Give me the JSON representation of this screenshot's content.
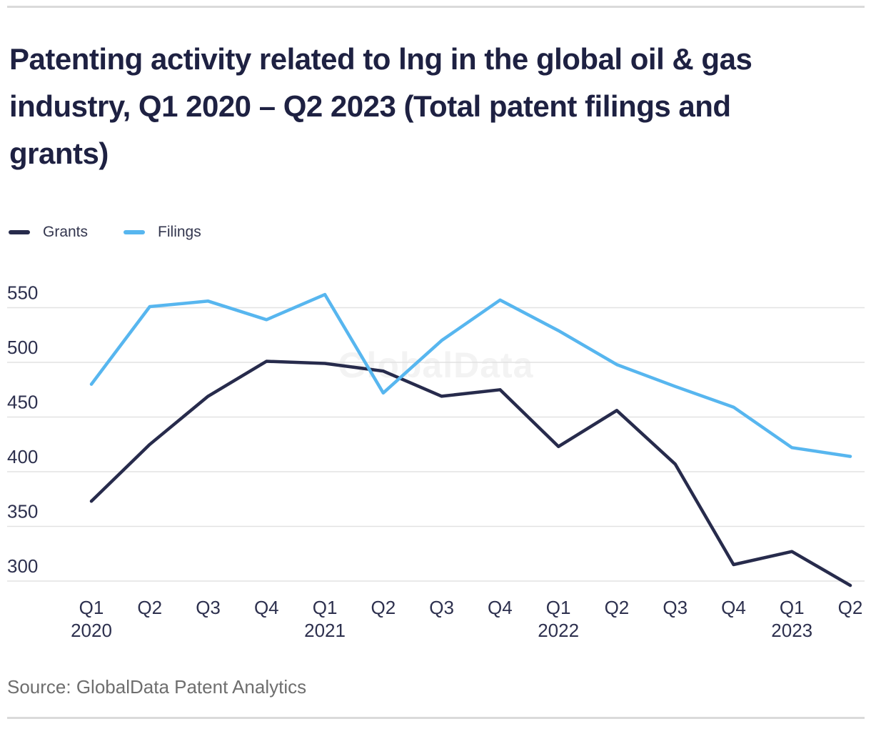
{
  "header": {
    "title": "Patenting activity related to lng in the global oil & gas industry, Q1 2020 – Q2 2023 (Total patent filings and grants)"
  },
  "legend": {
    "items": [
      {
        "label": "Grants",
        "color": "#272b4c"
      },
      {
        "label": "Filings",
        "color": "#57b6ef"
      }
    ]
  },
  "chart_data": {
    "type": "line",
    "title": "Patenting activity related to lng in the global oil & gas industry, Q1 2020 – Q2 2023 (Total patent filings and grants)",
    "categories": [
      "Q1 2020",
      "Q2 2020",
      "Q3 2020",
      "Q4 2020",
      "Q1 2021",
      "Q2 2021",
      "Q3 2021",
      "Q4 2021",
      "Q1 2022",
      "Q2 2022",
      "Q3 2022",
      "Q4 2022",
      "Q1 2023",
      "Q2 2023"
    ],
    "x_tick_labels": [
      "Q1",
      "Q2",
      "Q3",
      "Q4",
      "Q1",
      "Q2",
      "Q3",
      "Q4",
      "Q1",
      "Q2",
      "Q3",
      "Q4",
      "Q1",
      "Q2"
    ],
    "x_year_labels": [
      {
        "index": 0,
        "year": "2020"
      },
      {
        "index": 4,
        "year": "2021"
      },
      {
        "index": 8,
        "year": "2022"
      },
      {
        "index": 12,
        "year": "2023"
      }
    ],
    "series": [
      {
        "name": "Grants",
        "color": "#272b4c",
        "values": [
          373,
          425,
          469,
          501,
          499,
          492,
          469,
          475,
          423,
          456,
          407,
          315,
          327,
          296
        ]
      },
      {
        "name": "Filings",
        "color": "#57b6ef",
        "values": [
          480,
          551,
          556,
          539,
          562,
          472,
          520,
          557,
          529,
          498,
          478,
          459,
          422,
          414
        ]
      }
    ],
    "y_ticks": [
      300,
      350,
      400,
      450,
      500,
      550
    ],
    "ylim": [
      280,
      575
    ],
    "grid": true,
    "legend_position": "top-left",
    "watermark": "GlobalData"
  },
  "footer": {
    "source": "Source: GlobalData Patent Analytics"
  }
}
